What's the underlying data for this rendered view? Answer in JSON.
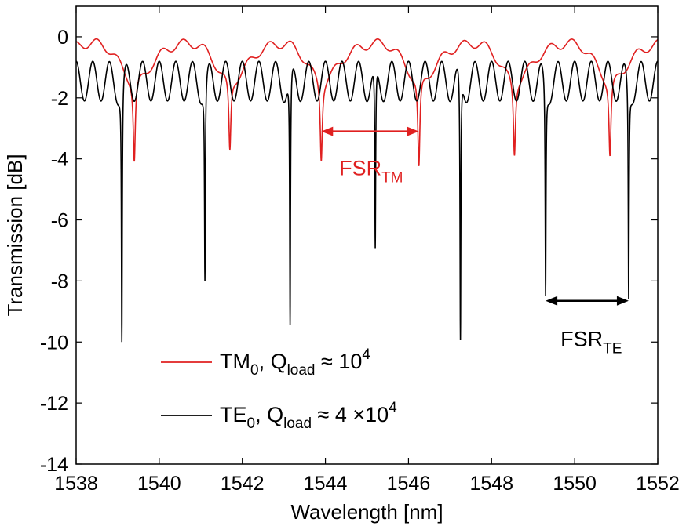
{
  "chart_data": {
    "type": "line",
    "xlabel": "Wavelength [nm]",
    "ylabel": "Transmission [dB]",
    "xlim": [
      1538,
      1552
    ],
    "ylim": [
      -14,
      1
    ],
    "x_ticks": [
      1538,
      1540,
      1542,
      1544,
      1546,
      1548,
      1550,
      1552
    ],
    "y_ticks": [
      0,
      -2,
      -4,
      -6,
      -8,
      -10,
      -12,
      -14
    ],
    "grid": false,
    "legend_placement": "lower-left",
    "series": [
      {
        "legend": {
          "main": "TM",
          "sub0": "0",
          "mid": ", Q",
          "sub1": "load",
          "tail": " ≈ 10",
          "sup": "4"
        },
        "color": "#e02020",
        "baseline_db": -0.3,
        "fringe_amplitude_db": 0.15,
        "fringe_period_nm": 0.52,
        "dip_centers_nm": [
          1539.4,
          1541.7,
          1543.9,
          1546.25,
          1548.55,
          1550.85
        ],
        "dip_depths_db": [
          -3.0,
          -2.7,
          -2.9,
          -3.3,
          -2.75,
          -2.85
        ]
      },
      {
        "legend": {
          "main": "TE",
          "sub0": "0",
          "mid": ", Q",
          "sub1": "load",
          "tail": " ≈ 4 ×10",
          "sup": "4"
        },
        "color": "#000000",
        "baseline_db": -1.45,
        "fringe_amplitude_db": 0.65,
        "fringe_period_nm": 0.4,
        "dip_centers_nm": [
          1539.1,
          1541.1,
          1543.15,
          1545.2,
          1547.25,
          1549.3,
          1551.3
        ],
        "dip_depths_db": [
          -10.0,
          -8.0,
          -9.9,
          -7.6,
          -10.4,
          -8.5,
          -8.6
        ]
      }
    ],
    "annotations": [
      {
        "id": "fsr-tm",
        "main": "FSR",
        "sub": "TM",
        "color": "#e02020",
        "x_from": 1543.9,
        "x_to": 1546.25,
        "y": -3.1,
        "label_x": 1545.1,
        "label_y": -4.3
      },
      {
        "id": "fsr-te",
        "main": "FSR",
        "sub": "TE",
        "color": "#000000",
        "x_from": 1549.3,
        "x_to": 1551.3,
        "y": -8.65,
        "label_x": 1550.4,
        "label_y": -9.9
      }
    ]
  }
}
